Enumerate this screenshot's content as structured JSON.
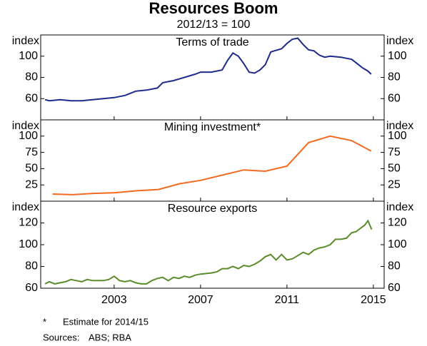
{
  "header": {
    "title": "Resources Boom",
    "subtitle": "2012/13 = 100"
  },
  "chart_data": [
    {
      "type": "line",
      "title": "Terms of trade",
      "ylabel": "index",
      "y2label": "index",
      "xlim": [
        1999.6,
        2015.5
      ],
      "ylim": [
        40,
        120
      ],
      "yticks": [
        60,
        80,
        100
      ],
      "series": [
        {
          "name": "Terms of trade",
          "color": "#1c2b8c",
          "x": [
            1999.8,
            2000,
            2000.5,
            2001,
            2001.5,
            2002,
            2002.5,
            2003,
            2003.5,
            2004,
            2004.5,
            2005,
            2005.25,
            2005.75,
            2006.25,
            2006.75,
            2007,
            2007.5,
            2008,
            2008.25,
            2008.5,
            2008.75,
            2009,
            2009.25,
            2009.5,
            2009.75,
            2010,
            2010.25,
            2010.75,
            2011,
            2011.25,
            2011.5,
            2011.75,
            2012,
            2012.25,
            2012.5,
            2012.75,
            2013,
            2013.5,
            2013.75,
            2014,
            2014.25,
            2014.5,
            2014.75,
            2014.9
          ],
          "values": [
            59,
            58,
            59,
            58,
            58,
            59,
            60,
            61,
            63,
            67,
            68,
            70,
            75,
            77,
            80,
            83,
            85,
            85,
            87,
            96,
            103,
            100,
            93,
            85,
            84,
            87,
            92,
            104,
            107,
            112,
            116,
            117,
            111,
            106,
            105,
            101,
            99,
            100,
            99,
            98,
            97,
            93,
            89,
            86,
            83
          ]
        }
      ]
    },
    {
      "type": "line",
      "title": "Mining investment*",
      "ylabel": "index",
      "y2label": "index",
      "xlim": [
        1999.6,
        2015.5
      ],
      "ylim": [
        0,
        125
      ],
      "yticks": [
        25,
        50,
        75,
        100
      ],
      "series": [
        {
          "name": "Mining investment",
          "color": "#f26b21",
          "x": [
            2000.15,
            2001.1,
            2002.05,
            2003.05,
            2004.05,
            2005.05,
            2006.05,
            2007.0,
            2008.0,
            2009.0,
            2010.0,
            2011.0,
            2012.0,
            2013.0,
            2014.0,
            2014.9
          ],
          "values": [
            11,
            10,
            12,
            13,
            16,
            18,
            27,
            32,
            40,
            48,
            46,
            54,
            90,
            100,
            93,
            77
          ]
        }
      ]
    },
    {
      "type": "line",
      "title": "Resource exports",
      "ylabel": "index",
      "y2label": "index",
      "xlim": [
        1999.6,
        2015.5
      ],
      "ylim": [
        60,
        140
      ],
      "yticks": [
        60,
        80,
        100,
        120
      ],
      "xticks": [
        2003,
        2007,
        2011,
        2015
      ],
      "series": [
        {
          "name": "Resource exports",
          "color": "#5b8c2a",
          "x": [
            1999.8,
            2000,
            2000.25,
            2000.5,
            2000.75,
            2001,
            2001.25,
            2001.5,
            2001.75,
            2002,
            2002.5,
            2002.75,
            2003,
            2003.25,
            2003.5,
            2003.75,
            2004,
            2004.25,
            2004.5,
            2004.75,
            2005,
            2005.25,
            2005.5,
            2005.75,
            2006,
            2006.25,
            2006.5,
            2006.75,
            2007,
            2007.5,
            2007.75,
            2008,
            2008.25,
            2008.5,
            2008.75,
            2009,
            2009.25,
            2009.5,
            2009.75,
            2010,
            2010.25,
            2010.5,
            2010.75,
            2011,
            2011.25,
            2011.5,
            2011.75,
            2012,
            2012.25,
            2012.5,
            2012.75,
            2013,
            2013.25,
            2013.5,
            2013.75,
            2014,
            2014.2,
            2014.4,
            2014.6,
            2014.75,
            2014.92
          ],
          "values": [
            64,
            66,
            64,
            65,
            66,
            68,
            67,
            66,
            68,
            67,
            67,
            68,
            71,
            67,
            66,
            67,
            65,
            64,
            64,
            67,
            69,
            70,
            67,
            70,
            69,
            71,
            70,
            72,
            73,
            74,
            75,
            78,
            78,
            80,
            78,
            81,
            80,
            82,
            85,
            89,
            91,
            86,
            91,
            86,
            87,
            90,
            93,
            91,
            95,
            97,
            98,
            100,
            105,
            105,
            106,
            111,
            112,
            115,
            118,
            122,
            114
          ]
        }
      ]
    }
  ],
  "notes": {
    "marker": "*",
    "footnote": "Estimate for 2014/15",
    "sources_label": "Sources:",
    "sources": "ABS; RBA"
  }
}
